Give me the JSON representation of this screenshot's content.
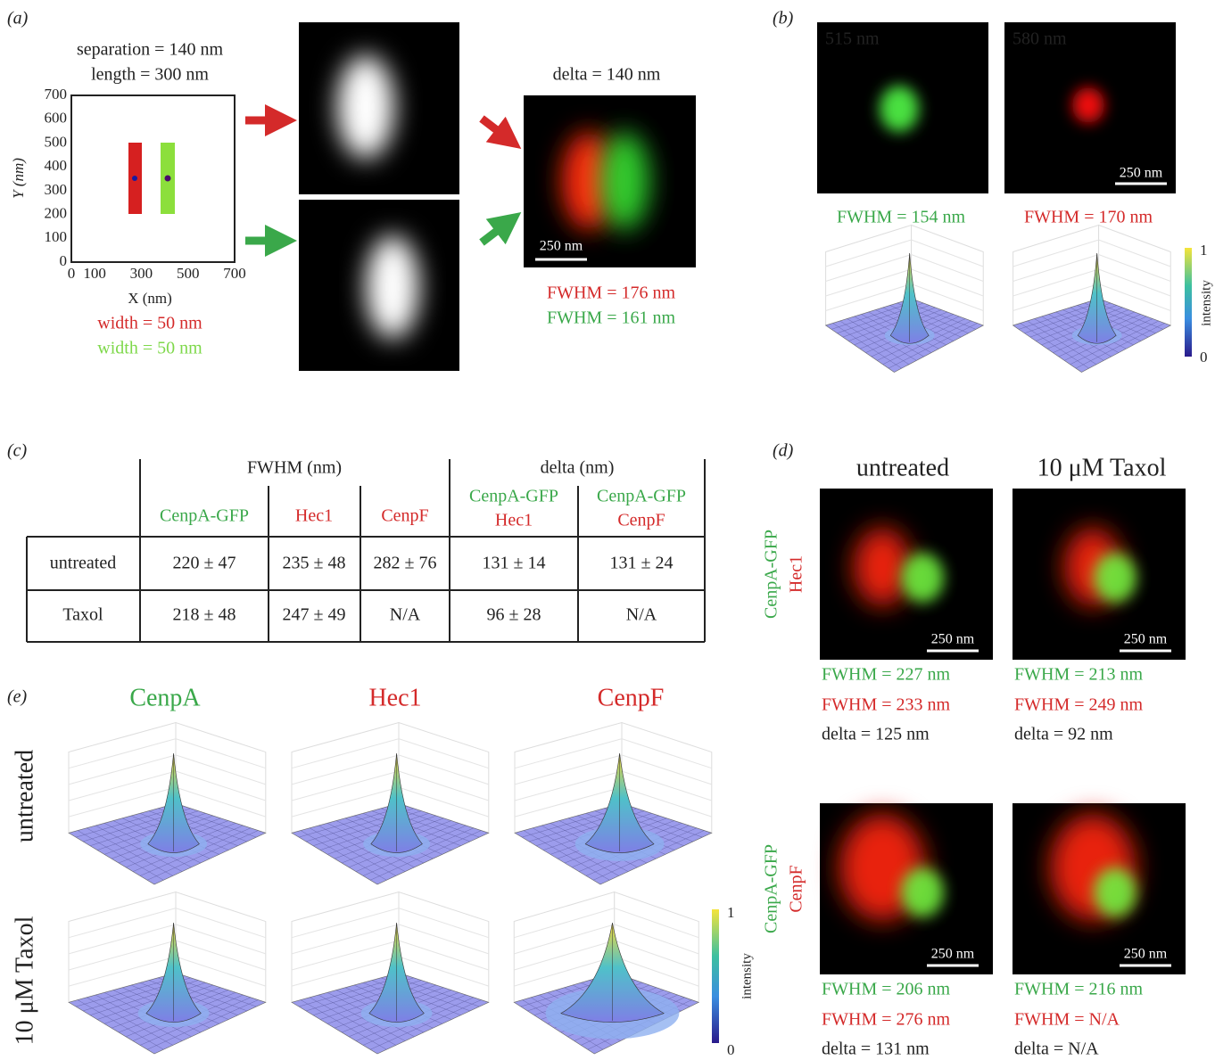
{
  "panel_a": {
    "label": "(a)",
    "title_lines": [
      "separation = 140 nm",
      "length = 300 nm"
    ],
    "y_axis_label": "Y (nm)",
    "x_axis_label": "X (nm)",
    "yticks": [
      0,
      100,
      200,
      300,
      400,
      500,
      600,
      700
    ],
    "xticks": [
      0,
      100,
      300,
      500,
      700
    ],
    "width_red": "width = 50 nm",
    "width_green": "width = 50 nm",
    "delta_title": "delta = 140 nm",
    "scale_bar": "250 nm",
    "fwhm_red": "FWHM = 176 nm",
    "fwhm_green": "FWHM = 161 nm"
  },
  "panel_b": {
    "label": "(b)",
    "wavelength_green": "515 nm",
    "wavelength_red": "580 nm",
    "scale_bar": "250 nm",
    "fwhm_green": "FWHM = 154 nm",
    "fwhm_red": "FWHM = 170 nm",
    "colorbar_max": "1",
    "colorbar_min": "0",
    "colorbar_title": "intensity"
  },
  "panel_c": {
    "label": "(c)",
    "group_headers": [
      "FWHM (nm)",
      "delta (nm)"
    ],
    "columns": [
      "CenpA-GFP",
      "Hec1",
      "CenpF",
      [
        "CenpA-GFP",
        "Hec1"
      ],
      [
        "CenpA-GFP",
        "CenpF"
      ]
    ],
    "rows": [
      [
        "untreated",
        "220 ± 47",
        "235 ± 48",
        "282 ± 76",
        "131 ± 14",
        "131 ± 24"
      ],
      [
        "Taxol",
        "218 ± 48",
        "247 ± 49",
        "N/A",
        "96 ± 28",
        "N/A"
      ]
    ]
  },
  "panel_d": {
    "label": "(d)",
    "columns": [
      "untreated",
      "10 μM Taxol"
    ],
    "rows": [
      {
        "label": [
          "CenpA-GFP",
          "Hec1"
        ],
        "cells": [
          {
            "scale_bar": "250 nm",
            "fwhm_green": "FWHM = 227 nm",
            "fwhm_red": "FWHM = 233 nm",
            "delta": "delta = 125 nm"
          },
          {
            "scale_bar": "250 nm",
            "fwhm_green": "FWHM = 213 nm",
            "fwhm_red": "FWHM = 249 nm",
            "delta": "delta = 92 nm"
          }
        ]
      },
      {
        "label": [
          "CenpA-GFP",
          "CenpF"
        ],
        "cells": [
          {
            "scale_bar": "250 nm",
            "fwhm_green": "FWHM = 206 nm",
            "fwhm_red": "FWHM = 276 nm",
            "delta": "delta = 131 nm"
          },
          {
            "scale_bar": "250 nm",
            "fwhm_green": "FWHM = 216 nm",
            "fwhm_red": "FWHM = N/A",
            "delta": "delta = N/A"
          }
        ]
      }
    ]
  },
  "panel_e": {
    "label": "(e)",
    "columns": [
      "CenpA",
      "Hec1",
      "CenpF"
    ],
    "rows": [
      "untreated",
      "10 μM Taxol"
    ],
    "colorbar_max": "1",
    "colorbar_min": "0",
    "colorbar_title": "intensity"
  }
}
